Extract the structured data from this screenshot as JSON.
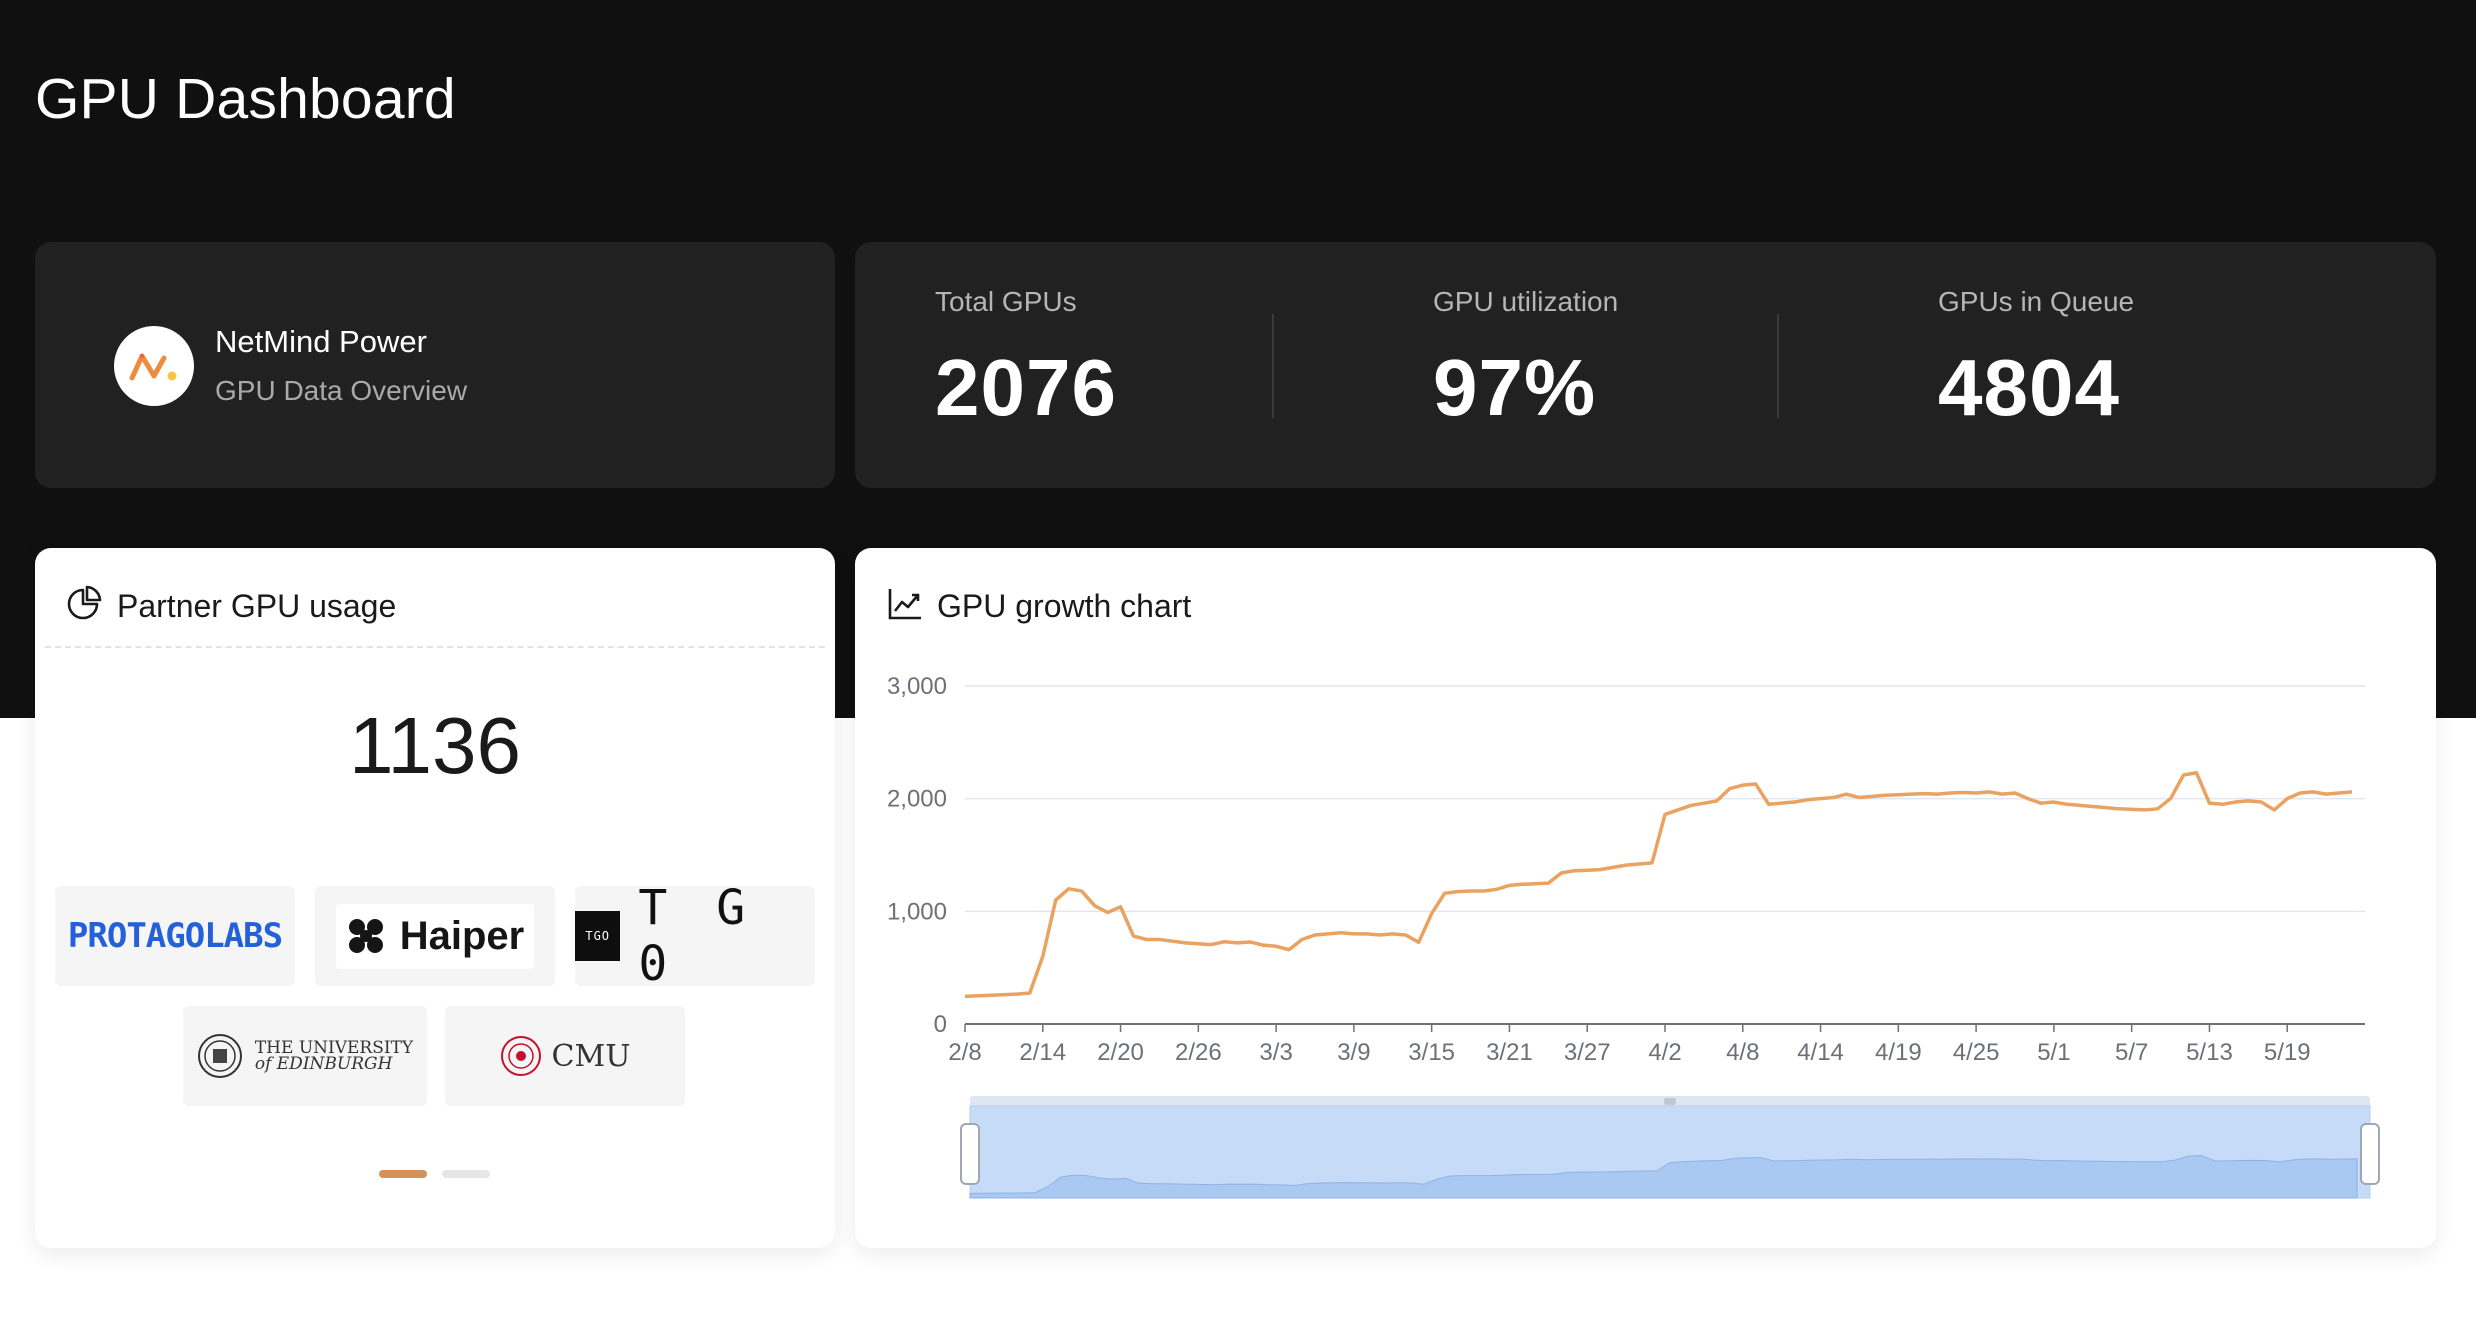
{
  "page": {
    "title": "GPU Dashboard"
  },
  "brand": {
    "name": "NetMind Power",
    "subtitle": "GPU Data Overview",
    "logo_icon": "netmind-logo-icon"
  },
  "stats": [
    {
      "label": "Total GPUs",
      "value": "2076"
    },
    {
      "label": "GPU utilization",
      "value": "97%"
    },
    {
      "label": "GPUs in Queue",
      "value": "4804"
    }
  ],
  "partner_card": {
    "title": "Partner GPU usage",
    "icon": "pie-chart-icon",
    "total": "1136",
    "partners": [
      {
        "name": "PROTAGOLABS"
      },
      {
        "name": "Haiper"
      },
      {
        "name": "TGO",
        "box_text": "TGO",
        "display": "T G 0"
      },
      {
        "name": "THE UNIVERSITY of EDINBURGH",
        "line1": "THE UNIVERSITY",
        "line2": "of EDINBURGH"
      },
      {
        "name": "CMU"
      }
    ],
    "pagination": {
      "pages": 2,
      "current": 1
    }
  },
  "growth_card": {
    "title": "GPU growth chart",
    "icon": "line-chart-icon"
  },
  "colors": {
    "accent": "#e9a25f",
    "dark_bg": "#101010",
    "card_dark": "#212121",
    "zoom_fill": "#c5dbf7",
    "zoom_area": "#a9c8f2"
  },
  "chart_data": {
    "type": "line",
    "ylim": [
      0,
      3000
    ],
    "yticks": [
      0,
      1000,
      2000,
      3000
    ],
    "ytick_labels": [
      "0",
      "1,000",
      "2,000",
      "3,000"
    ],
    "xtick_labels": [
      "2/8",
      "2/14",
      "2/20",
      "2/26",
      "3/3",
      "3/9",
      "3/15",
      "3/21",
      "3/27",
      "4/2",
      "4/8",
      "4/14",
      "4/19",
      "4/25",
      "5/1",
      "5/7",
      "5/13",
      "5/19"
    ],
    "x": [
      0,
      2,
      4,
      5,
      6,
      7,
      8,
      9,
      10,
      11,
      12,
      13,
      14,
      15,
      16,
      17,
      18,
      19,
      20,
      21,
      22,
      23,
      24,
      25,
      26,
      27,
      28,
      29,
      30,
      31,
      32,
      33,
      34,
      35,
      36,
      37,
      38,
      39,
      40,
      41,
      42,
      43,
      44,
      45,
      46,
      47,
      48,
      49,
      50,
      51,
      52,
      53,
      54,
      55,
      56,
      57,
      58,
      59,
      60,
      61,
      62,
      63,
      64,
      65,
      66,
      67,
      68,
      69,
      70,
      71,
      72,
      73,
      74,
      75,
      76,
      77,
      78,
      79,
      80,
      81,
      82,
      83,
      84,
      85,
      86,
      87,
      88,
      89,
      90,
      91,
      92,
      93,
      94,
      95,
      96,
      97,
      98,
      99,
      100,
      101,
      102,
      103,
      104,
      105,
      106,
      107
    ],
    "values": [
      245,
      255,
      265,
      275,
      600,
      1100,
      1200,
      1180,
      1050,
      990,
      1040,
      780,
      750,
      750,
      735,
      720,
      712,
      705,
      730,
      720,
      728,
      700,
      690,
      660,
      750,
      790,
      800,
      810,
      800,
      800,
      790,
      800,
      790,
      725,
      980,
      1160,
      1175,
      1180,
      1180,
      1195,
      1230,
      1240,
      1245,
      1250,
      1340,
      1360,
      1365,
      1370,
      1390,
      1410,
      1420,
      1430,
      1860,
      1900,
      1940,
      1960,
      1980,
      2090,
      2120,
      2130,
      1950,
      1960,
      1970,
      1990,
      2000,
      2010,
      2040,
      2010,
      2020,
      2030,
      2035,
      2040,
      2045,
      2040,
      2050,
      2055,
      2050,
      2060,
      2040,
      2050,
      2000,
      1960,
      1970,
      1950,
      1940,
      1930,
      1920,
      1910,
      1905,
      1900,
      1910,
      2000,
      2210,
      2230,
      1960,
      1950,
      1970,
      1980,
      1970,
      1900,
      2000,
      2050,
      2060,
      2040,
      2050,
      2060
    ],
    "grid": true,
    "legend": "none",
    "zoom_slider": true
  }
}
